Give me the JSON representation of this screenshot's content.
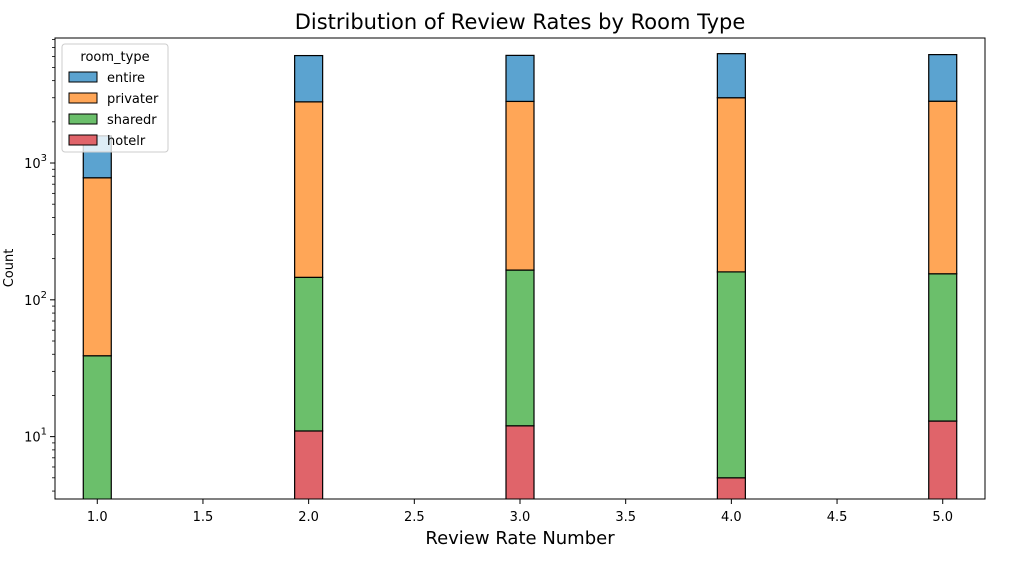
{
  "chart_data": {
    "type": "bar",
    "stacked": true,
    "title": "Distribution of Review Rates by Room Type",
    "xlabel": "Review Rate Number",
    "ylabel": "Count",
    "yscale": "log",
    "xlim": [
      0.8,
      5.2
    ],
    "ylim": [
      3.5,
      8200
    ],
    "xticks": [
      "1.0",
      "1.5",
      "2.0",
      "2.5",
      "3.0",
      "3.5",
      "4.0",
      "4.5",
      "5.0"
    ],
    "yticks": [
      {
        "value": 10,
        "base": "10",
        "exp": "1"
      },
      {
        "value": 100,
        "base": "10",
        "exp": "2"
      },
      {
        "value": 1000,
        "base": "10",
        "exp": "3"
      }
    ],
    "x": [
      1,
      2,
      3,
      4,
      5
    ],
    "series": [
      {
        "name": "hotelr",
        "color": "#e0646a",
        "values": [
          0,
          11,
          12,
          5,
          13
        ]
      },
      {
        "name": "sharedr",
        "color": "#6bbf6b",
        "values": [
          39,
          135,
          153,
          155,
          142
        ]
      },
      {
        "name": "privater",
        "color": "#ffa657",
        "values": [
          741,
          2654,
          2655,
          2840,
          2675
        ]
      },
      {
        "name": "entire",
        "color": "#5ba3d0",
        "values": [
          800,
          3300,
          3300,
          3300,
          3370
        ]
      }
    ],
    "legend": {
      "title": "room_type",
      "position": "top-left",
      "entries": [
        "entire",
        "privater",
        "sharedr",
        "hotelr"
      ]
    }
  }
}
